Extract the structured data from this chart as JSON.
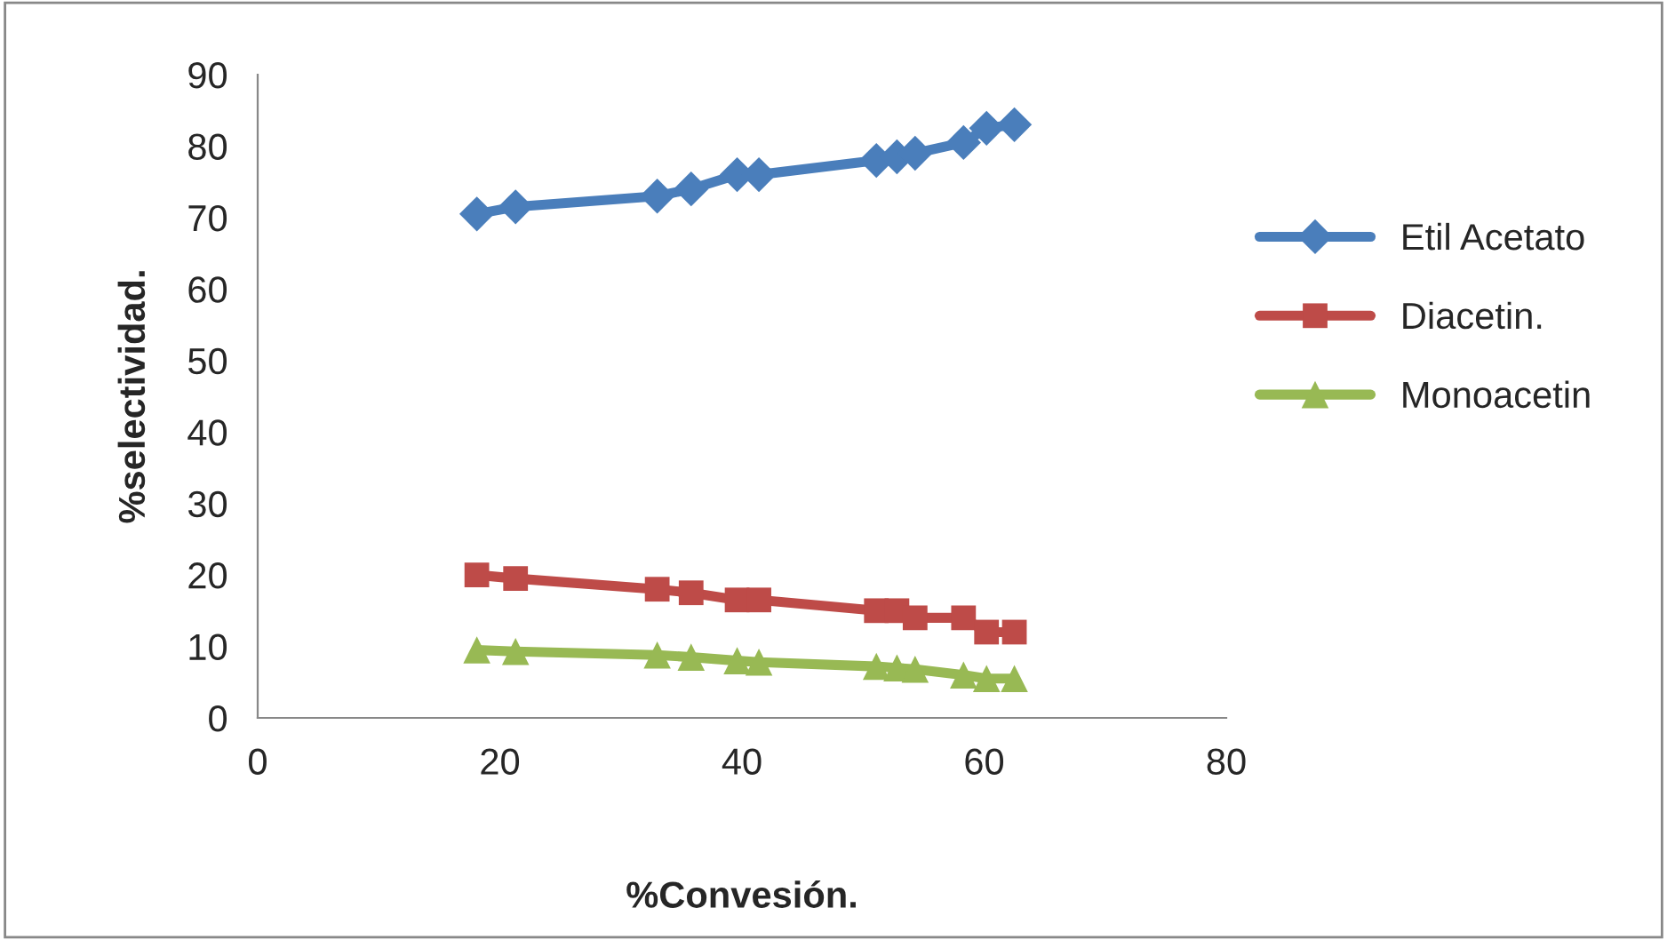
{
  "chart_data": {
    "type": "line",
    "xlabel": "%Convesión.",
    "ylabel": "%selectividad.",
    "x": [
      18.1,
      21.3,
      33.0,
      35.8,
      39.6,
      41.4,
      51.1,
      52.8,
      54.3,
      58.3,
      60.2,
      62.5
    ],
    "series": [
      {
        "name": "Etil Acetato",
        "color": "#4a7ebb",
        "marker": "diamond",
        "values": [
          70.5,
          71.5,
          73,
          74,
          76,
          76,
          78,
          78.5,
          79,
          80.5,
          82.5,
          83
        ]
      },
      {
        "name": "Diacetin.",
        "color": "#be4b48",
        "marker": "square",
        "values": [
          20,
          19.5,
          18,
          17.5,
          16.5,
          16.5,
          15,
          15,
          14,
          14,
          12,
          12
        ]
      },
      {
        "name": "Monoacetin",
        "color": "#98b954",
        "marker": "triangle",
        "values": [
          9.5,
          9.3,
          8.8,
          8.5,
          8,
          7.8,
          7.2,
          7,
          6.8,
          6,
          5.5,
          5.5
        ]
      }
    ],
    "xlim": [
      0,
      80
    ],
    "xticks": [
      0,
      20,
      40,
      60,
      80
    ],
    "ylim": [
      0,
      90
    ],
    "yticks": [
      0,
      10,
      20,
      30,
      40,
      50,
      60,
      70,
      80,
      90
    ],
    "grid": false,
    "legend": "right"
  }
}
